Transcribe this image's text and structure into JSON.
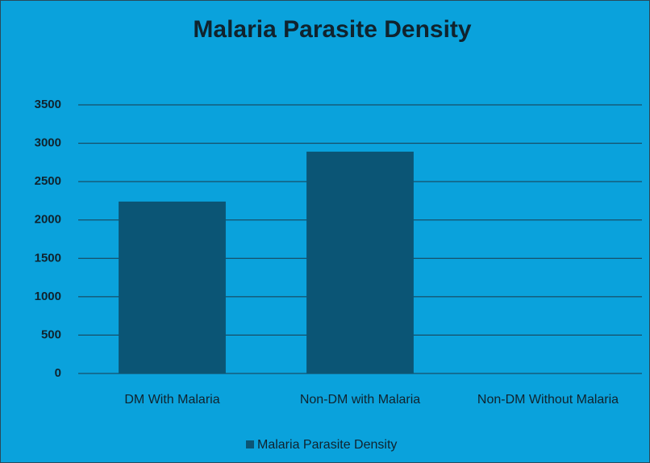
{
  "chart_data": {
    "type": "bar",
    "title": "Malaria Parasite Density",
    "categories": [
      "DM With Malaria",
      "Non-DM with Malaria",
      "Non-DM Without Malaria"
    ],
    "series": [
      {
        "name": "Malaria Parasite Density",
        "color": "#0b5575",
        "values": [
          2240,
          2890,
          0
        ]
      }
    ],
    "ylim": [
      0,
      3500
    ],
    "yticks": [
      0,
      500,
      1000,
      1500,
      2000,
      2500,
      3000,
      3500
    ],
    "grid": true,
    "legend": "bottom"
  }
}
